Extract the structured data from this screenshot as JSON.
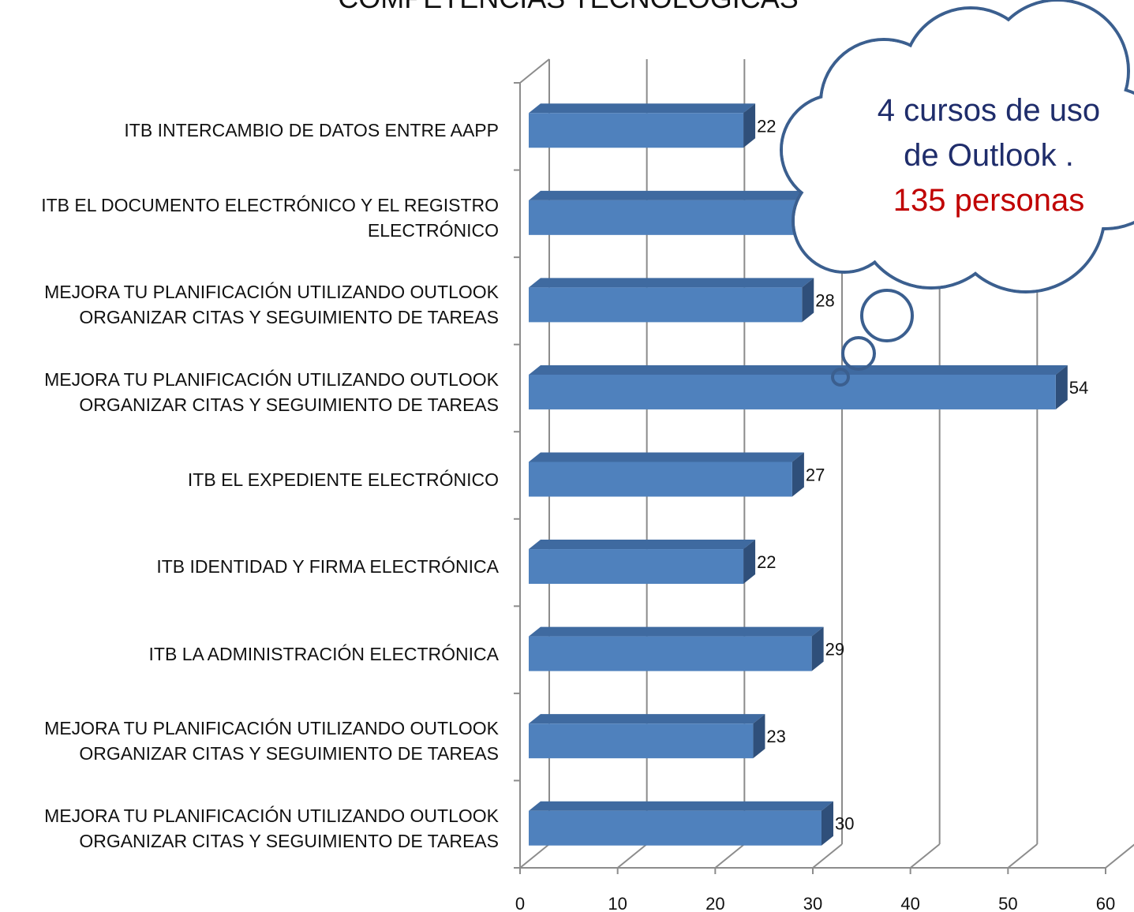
{
  "chart_data": {
    "type": "bar",
    "orientation": "horizontal",
    "title": "COMPETENCIAS TECNOLÓGICAS",
    "categories": [
      "ITB INTERCAMBIO DE DATOS ENTRE AAPP",
      "ITB EL DOCUMENTO ELECTRÓNICO Y EL REGISTRO\nELECTRÓNICO",
      "MEJORA TU PLANIFICACIÓN UTILIZANDO OUTLOOK\nORGANIZAR CITAS Y SEGUIMIENTO DE TAREAS",
      "MEJORA TU PLANIFICACIÓN UTILIZANDO OUTLOOK\nORGANIZAR CITAS Y SEGUIMIENTO DE TAREAS",
      "ITB EL EXPEDIENTE ELECTRÓNICO",
      "ITB IDENTIDAD Y FIRMA ELECTRÓNICA",
      "ITB LA ADMINISTRACIÓN ELECTRÓNICA",
      "MEJORA TU PLANIFICACIÓN UTILIZANDO OUTLOOK\nORGANIZAR CITAS Y SEGUIMIENTO DE TAREAS",
      "MEJORA TU PLANIFICACIÓN UTILIZANDO OUTLOOK\nORGANIZAR CITAS Y SEGUIMIENTO DE TAREAS"
    ],
    "values": [
      22,
      34,
      28,
      54,
      27,
      22,
      29,
      23,
      30
    ],
    "color": "#4f81bd",
    "xlim": [
      0,
      60
    ],
    "xticks": [
      0,
      10,
      20,
      30,
      40,
      50,
      60
    ],
    "grid": true,
    "annotation": {
      "lines": [
        "4 cursos de uso",
        "de Outlook .",
        "135 personas"
      ],
      "colors": [
        "#1f2d6b",
        "#1f2d6b",
        "#c00000"
      ]
    }
  }
}
